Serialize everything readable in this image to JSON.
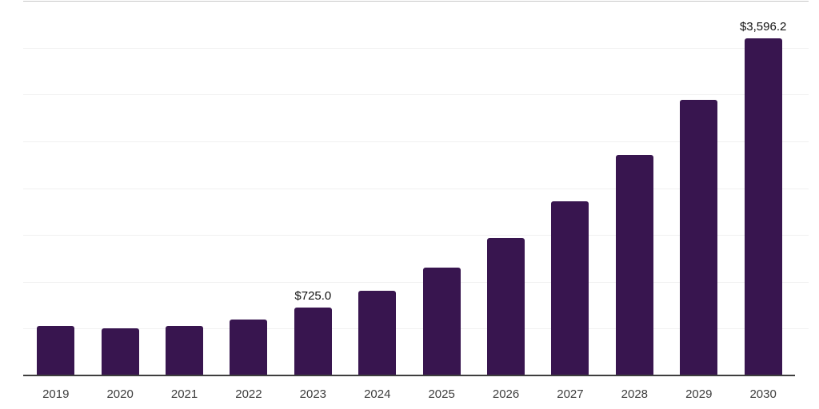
{
  "chart_data": {
    "type": "bar",
    "title": "",
    "xlabel": "",
    "ylabel": "",
    "categories": [
      "2019",
      "2020",
      "2021",
      "2022",
      "2023",
      "2024",
      "2025",
      "2026",
      "2027",
      "2028",
      "2029",
      "2030"
    ],
    "values": [
      525,
      505,
      525,
      595,
      725.0,
      900,
      1150,
      1465,
      1860,
      2355,
      2940,
      3596.2
    ],
    "data_labels": [
      "",
      "",
      "",
      "",
      "$725.0",
      "",
      "",
      "",
      "",
      "",
      "",
      "$3,596.2"
    ],
    "ylim": [
      0,
      4000
    ],
    "gridline_step": 500,
    "grid": "horizontal-unlabeled",
    "legend_position": "none",
    "bar_color": "#38154f"
  },
  "colors": {
    "background": "#ffffff",
    "bar": "#38154f",
    "gridline": "#f1f1f1",
    "top_border": "#c9c9c9",
    "axis": "#3e3e3e",
    "tick_label": "#3d3d3d",
    "data_label": "#111111"
  }
}
